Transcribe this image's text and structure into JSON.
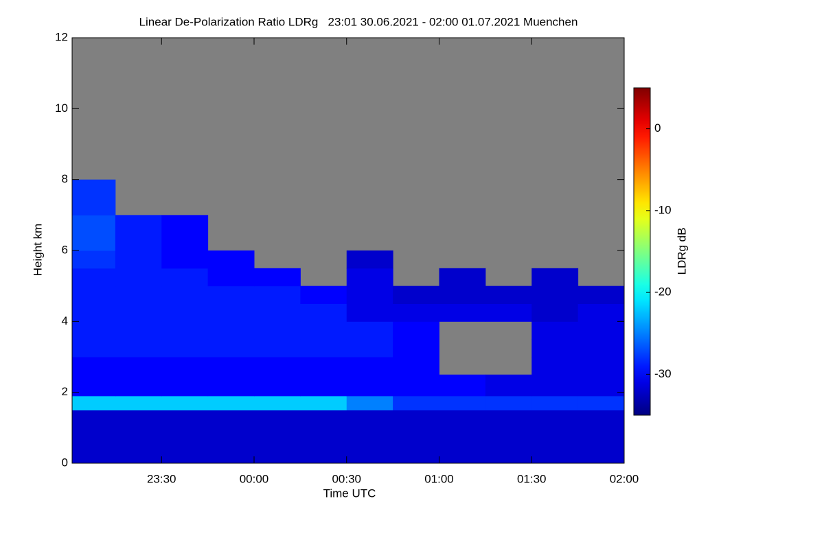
{
  "chart_data": {
    "type": "heatmap",
    "title": "Linear De-Polarization Ratio LDRg   23:01 30.06.2021 - 02:00 01.07.2021 Muenchen",
    "xlabel": "Time UTC",
    "ylabel": "Height km",
    "colorbar_label": "LDRg dB",
    "colormap": "jet",
    "x": [
      23.0167,
      23.25,
      23.5,
      23.75,
      24,
      24.25,
      24.5,
      24.75,
      25,
      25.25,
      25.5,
      25.75,
      26
    ],
    "y": [
      0,
      1.5,
      1.9,
      2.5,
      3,
      3.5,
      4,
      4.5,
      5,
      5.5,
      6,
      7,
      8,
      12
    ],
    "values": [
      [
        -32,
        -32,
        -32,
        -32,
        -32,
        -32,
        -32,
        -32,
        -32,
        -32,
        -32,
        -32
      ],
      [
        -22,
        -22,
        -22,
        -22,
        -22,
        -22,
        -25,
        -28,
        -28,
        -28,
        -28,
        -28
      ],
      [
        -30,
        -30,
        -30,
        -30,
        -30,
        -30,
        -30,
        -30,
        -30,
        -31,
        -31,
        -31
      ],
      [
        -30,
        -30,
        -30,
        -30,
        -30,
        -30,
        -30,
        -30,
        null,
        null,
        -31,
        -31
      ],
      [
        -29,
        -29,
        -29,
        -29,
        -29,
        -29,
        -29,
        -30,
        null,
        null,
        -31,
        -31
      ],
      [
        -29,
        -29,
        -29,
        -29,
        -29,
        -29,
        -29,
        -30,
        null,
        null,
        -31,
        -31
      ],
      [
        -29,
        -29,
        -29,
        -29,
        -29,
        -29,
        -31,
        -31,
        -31,
        -31,
        -32,
        -31
      ],
      [
        -29,
        -29,
        -29,
        -29,
        -29,
        -30,
        -31,
        -32,
        -32,
        -32,
        -32,
        -32
      ],
      [
        -29,
        -29,
        -29,
        -30,
        -30,
        null,
        -31,
        null,
        -32,
        null,
        -32,
        null
      ],
      [
        -28,
        -29,
        -30,
        -30,
        null,
        null,
        -32,
        null,
        null,
        null,
        null,
        null
      ],
      [
        -27,
        -29,
        -30,
        null,
        null,
        null,
        null,
        null,
        null,
        null,
        null,
        null
      ],
      [
        -28,
        null,
        null,
        null,
        null,
        null,
        null,
        null,
        null,
        null,
        null,
        null
      ],
      [
        null,
        null,
        null,
        null,
        null,
        null,
        null,
        null,
        null,
        null,
        null,
        null
      ]
    ],
    "xlim": [
      23.0167,
      26
    ],
    "xticks": [
      {
        "value": 23.5,
        "label": "23:30"
      },
      {
        "value": 24,
        "label": "00:00"
      },
      {
        "value": 24.5,
        "label": "00:30"
      },
      {
        "value": 25,
        "label": "01:00"
      },
      {
        "value": 25.5,
        "label": "01:30"
      },
      {
        "value": 26,
        "label": "02:00"
      }
    ],
    "ylim": [
      0,
      12
    ],
    "yticks": [
      0,
      2,
      4,
      6,
      8,
      10,
      12
    ],
    "clim": [
      -35,
      5
    ],
    "cticks": [
      0,
      -10,
      -20,
      -30
    ],
    "missing_color": "#808080"
  }
}
